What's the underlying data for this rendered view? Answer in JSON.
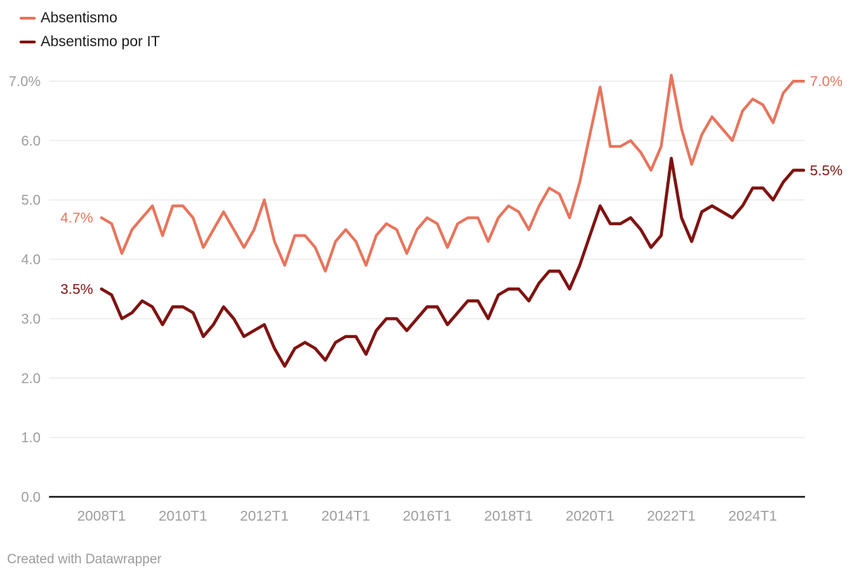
{
  "legend": {
    "items": [
      {
        "label": "Absentismo",
        "color": "#e8745c"
      },
      {
        "label": "Absentismo por IT",
        "color": "#7f1310"
      }
    ]
  },
  "footer": {
    "attribution": "Created with Datawrapper"
  },
  "colors": {
    "background": "#ffffff",
    "gridline": "#e9e9e9",
    "axis_line": "#1a1a1a",
    "tick_label": "#9d9d9d",
    "legend_text": "#1d1d1d",
    "footer_text": "#9b9b9b"
  },
  "chart_data": {
    "type": "line",
    "title": "",
    "categories": [
      "2008T1",
      "2008T2",
      "2008T3",
      "2008T4",
      "2009T1",
      "2009T2",
      "2009T3",
      "2009T4",
      "2010T1",
      "2010T2",
      "2010T3",
      "2010T4",
      "2011T1",
      "2011T2",
      "2011T3",
      "2011T4",
      "2012T1",
      "2012T2",
      "2012T3",
      "2012T4",
      "2013T1",
      "2013T2",
      "2013T3",
      "2013T4",
      "2014T1",
      "2014T2",
      "2014T3",
      "2014T4",
      "2015T1",
      "2015T2",
      "2015T3",
      "2015T4",
      "2016T1",
      "2016T2",
      "2016T3",
      "2016T4",
      "2017T1",
      "2017T2",
      "2017T3",
      "2017T4",
      "2018T1",
      "2018T2",
      "2018T3",
      "2018T4",
      "2019T1",
      "2019T2",
      "2019T3",
      "2019T4",
      "2020T1",
      "2020T2",
      "2020T3",
      "2020T4",
      "2021T1",
      "2021T2",
      "2021T3",
      "2021T4",
      "2022T1",
      "2022T2",
      "2022T3",
      "2022T4",
      "2023T1",
      "2023T2",
      "2023T3",
      "2023T4",
      "2024T1",
      "2024T2",
      "2024T3",
      "2024T4",
      "2025T1",
      "2025T2"
    ],
    "series": [
      {
        "name": "Absentismo",
        "color": "#e8745c",
        "start_label": "4.7%",
        "end_label": "7.0%",
        "values": [
          4.7,
          4.6,
          4.1,
          4.5,
          4.7,
          4.9,
          4.4,
          4.9,
          4.9,
          4.7,
          4.2,
          4.5,
          4.8,
          4.5,
          4.2,
          4.5,
          5.0,
          4.3,
          3.9,
          4.4,
          4.4,
          4.2,
          3.8,
          4.3,
          4.5,
          4.3,
          3.9,
          4.4,
          4.6,
          4.5,
          4.1,
          4.5,
          4.7,
          4.6,
          4.2,
          4.6,
          4.7,
          4.7,
          4.3,
          4.7,
          4.9,
          4.8,
          4.5,
          4.9,
          5.2,
          5.1,
          4.7,
          5.3,
          6.1,
          6.9,
          5.9,
          5.9,
          6.0,
          5.8,
          5.5,
          5.9,
          7.1,
          6.2,
          5.6,
          6.1,
          6.4,
          6.2,
          6.0,
          6.5,
          6.7,
          6.6,
          6.3,
          6.8,
          7.0,
          7.0
        ]
      },
      {
        "name": "Absentismo por IT",
        "color": "#7f1310",
        "start_label": "3.5%",
        "end_label": "5.5%",
        "values": [
          3.5,
          3.4,
          3.0,
          3.1,
          3.3,
          3.2,
          2.9,
          3.2,
          3.2,
          3.1,
          2.7,
          2.9,
          3.2,
          3.0,
          2.7,
          2.8,
          2.9,
          2.5,
          2.2,
          2.5,
          2.6,
          2.5,
          2.3,
          2.6,
          2.7,
          2.7,
          2.4,
          2.8,
          3.0,
          3.0,
          2.8,
          3.0,
          3.2,
          3.2,
          2.9,
          3.1,
          3.3,
          3.3,
          3.0,
          3.4,
          3.5,
          3.5,
          3.3,
          3.6,
          3.8,
          3.8,
          3.5,
          3.9,
          4.4,
          4.9,
          4.6,
          4.6,
          4.7,
          4.5,
          4.2,
          4.4,
          5.7,
          4.7,
          4.3,
          4.8,
          4.9,
          4.8,
          4.7,
          4.9,
          5.2,
          5.2,
          5.0,
          5.3,
          5.5,
          5.5
        ]
      }
    ],
    "y_axis": {
      "tick_values": [
        0,
        1,
        2,
        3,
        4,
        5,
        6,
        7
      ],
      "tick_labels": [
        "0.0",
        "1.0",
        "2.0",
        "3.0",
        "4.0",
        "5.0",
        "6.0",
        "7.0%"
      ],
      "range": [
        0,
        7
      ],
      "unit": "%"
    },
    "x_axis": {
      "tick_labels": [
        "2008T1",
        "2010T1",
        "2012T1",
        "2014T1",
        "2016T1",
        "2018T1",
        "2020T1",
        "2022T1",
        "2024T1"
      ]
    },
    "grid": true,
    "legend_position": "top-left"
  }
}
